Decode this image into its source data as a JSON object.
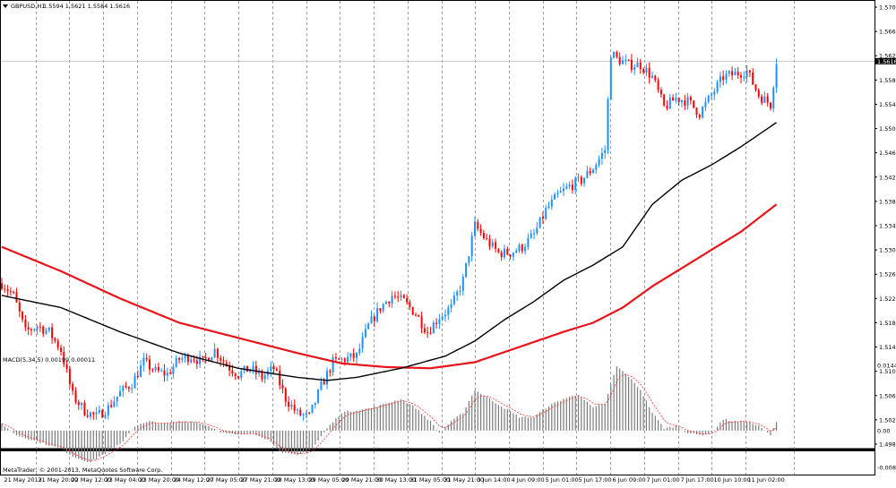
{
  "header": {
    "symbol_label": "GBPUSD,H1",
    "ohlc_label": "1.5594 1.5621 1.5584 1.5616",
    "current_price_label": "1.5616"
  },
  "macd_panel": {
    "title": "MACD(5,34,5) 0.00199 0.00011",
    "copyright": "MetaTrader, © 2001-2013, MetaQuotes Software Corp."
  },
  "colors": {
    "bull_candle": "#1e90ff",
    "bear_candle": "#ff0000",
    "ma_slow": "#e8141a",
    "ma_fast": "#000000",
    "macd_hist": "#7a7a7a",
    "signal_line": "#ff3030",
    "grid": "#9a9a9a",
    "frame": "#000000"
  },
  "chart_data": [
    {
      "type": "candlestick",
      "name": "price",
      "y_ticks": [
        "1.5705",
        "1.5665",
        "1.5625",
        "1.5585",
        "1.5545",
        "1.5505",
        "1.5465",
        "1.5425",
        "1.5385",
        "1.5345",
        "1.5305",
        "1.5265",
        "1.5225",
        "1.5185",
        "1.5145",
        "1.5105",
        "1.5065",
        "1.5025",
        "1.4985"
      ],
      "ylim": [
        1.4985,
        1.5705
      ],
      "x_ticks": [
        "21 May 2013",
        "21 May 20:00",
        "22 May 12:00",
        "23 May 04:00",
        "23 May 20:00",
        "24 May 12:00",
        "27 May 05:00",
        "27 May 21:00",
        "28 May 13:00",
        "29 May 05:00",
        "29 May 21:00",
        "30 May 13:00",
        "31 May 05:00",
        "31 May 21:00",
        "3 Jun 14:00",
        "4 Jun 09:00",
        "5 Jun 01:00",
        "5 Jun 17:00",
        "6 Jun 09:00",
        "7 Jun 01:00",
        "7 Jun 17:00",
        "10 Jun 10:00",
        "11 Jun 02:00"
      ],
      "price_path": [
        [
          0,
          1.525
        ],
        [
          4,
          1.523
        ],
        [
          8,
          1.517
        ],
        [
          12,
          1.518
        ],
        [
          16,
          1.517
        ],
        [
          20,
          1.514
        ],
        [
          24,
          1.5065
        ],
        [
          28,
          1.504
        ],
        [
          32,
          1.503
        ],
        [
          36,
          1.5045
        ],
        [
          40,
          1.507
        ],
        [
          44,
          1.5085
        ],
        [
          48,
          1.512
        ],
        [
          52,
          1.5105
        ],
        [
          56,
          1.51
        ],
        [
          60,
          1.5125
        ],
        [
          64,
          1.513
        ],
        [
          68,
          1.512
        ],
        [
          72,
          1.514
        ],
        [
          76,
          1.5115
        ],
        [
          80,
          1.51
        ],
        [
          84,
          1.511
        ],
        [
          88,
          1.5095
        ],
        [
          92,
          1.511
        ],
        [
          96,
          1.506
        ],
        [
          100,
          1.5035
        ],
        [
          104,
          1.503
        ],
        [
          108,
          1.508
        ],
        [
          112,
          1.512
        ],
        [
          116,
          1.5125
        ],
        [
          120,
          1.513
        ],
        [
          124,
          1.518
        ],
        [
          128,
          1.521
        ],
        [
          132,
          1.523
        ],
        [
          136,
          1.522
        ],
        [
          140,
          1.52
        ],
        [
          144,
          1.517
        ],
        [
          148,
          1.5195
        ],
        [
          152,
          1.521
        ],
        [
          156,
          1.5255
        ],
        [
          160,
          1.5345
        ],
        [
          164,
          1.532
        ],
        [
          168,
          1.53
        ],
        [
          172,
          1.53
        ],
        [
          176,
          1.531
        ],
        [
          180,
          1.533
        ],
        [
          184,
          1.537
        ],
        [
          188,
          1.5395
        ],
        [
          192,
          1.541
        ],
        [
          196,
          1.542
        ],
        [
          200,
          1.544
        ],
        [
          204,
          1.547
        ],
        [
          206,
          1.563
        ],
        [
          208,
          1.562
        ],
        [
          212,
          1.561
        ],
        [
          216,
          1.561
        ],
        [
          220,
          1.559
        ],
        [
          224,
          1.554
        ],
        [
          228,
          1.5555
        ],
        [
          232,
          1.555
        ],
        [
          236,
          1.553
        ],
        [
          240,
          1.556
        ],
        [
          244,
          1.559
        ],
        [
          248,
          1.5595
        ],
        [
          252,
          1.56
        ],
        [
          256,
          1.556
        ],
        [
          260,
          1.5545
        ],
        [
          262,
          1.5616
        ]
      ]
    },
    {
      "type": "line",
      "name": "ma_slow",
      "points": [
        [
          0,
          1.531
        ],
        [
          20,
          1.527
        ],
        [
          40,
          1.5225
        ],
        [
          60,
          1.5185
        ],
        [
          80,
          1.516
        ],
        [
          100,
          1.5135
        ],
        [
          115,
          1.5118
        ],
        [
          130,
          1.5112
        ],
        [
          145,
          1.511
        ],
        [
          160,
          1.512
        ],
        [
          175,
          1.5145
        ],
        [
          190,
          1.517
        ],
        [
          200,
          1.5185
        ],
        [
          210,
          1.521
        ],
        [
          220,
          1.5245
        ],
        [
          230,
          1.5275
        ],
        [
          240,
          1.5305
        ],
        [
          250,
          1.5335
        ],
        [
          262,
          1.538
        ]
      ]
    },
    {
      "type": "line",
      "name": "ma_fast",
      "points": [
        [
          0,
          1.523
        ],
        [
          20,
          1.521
        ],
        [
          40,
          1.517
        ],
        [
          60,
          1.5135
        ],
        [
          80,
          1.511
        ],
        [
          100,
          1.5095
        ],
        [
          110,
          1.509
        ],
        [
          120,
          1.5095
        ],
        [
          135,
          1.511
        ],
        [
          150,
          1.513
        ],
        [
          160,
          1.5155
        ],
        [
          170,
          1.519
        ],
        [
          180,
          1.522
        ],
        [
          190,
          1.5255
        ],
        [
          200,
          1.528
        ],
        [
          210,
          1.531
        ],
        [
          215,
          1.5345
        ],
        [
          220,
          1.538
        ],
        [
          230,
          1.542
        ],
        [
          240,
          1.5445
        ],
        [
          250,
          1.5475
        ],
        [
          262,
          1.5515
        ]
      ]
    },
    {
      "type": "bar",
      "name": "macd",
      "y_ticks": [
        "0.01442",
        "0.00",
        "-0.00813"
      ],
      "ylim": [
        -0.00813,
        0.01442
      ],
      "macd_path": [
        [
          0,
          0.0015
        ],
        [
          5,
          -0.001
        ],
        [
          10,
          -0.002
        ],
        [
          15,
          -0.003
        ],
        [
          20,
          -0.004
        ],
        [
          25,
          -0.006
        ],
        [
          30,
          -0.007
        ],
        [
          35,
          -0.005
        ],
        [
          40,
          -0.003
        ],
        [
          45,
          0.001
        ],
        [
          50,
          0.002
        ],
        [
          55,
          0.0015
        ],
        [
          60,
          0.002
        ],
        [
          65,
          0.002
        ],
        [
          70,
          0.001
        ],
        [
          75,
          -0.0005
        ],
        [
          80,
          -0.001
        ],
        [
          85,
          -0.0005
        ],
        [
          90,
          -0.002
        ],
        [
          95,
          -0.005
        ],
        [
          100,
          -0.0055
        ],
        [
          105,
          -0.004
        ],
        [
          110,
          0.0005
        ],
        [
          115,
          0.004
        ],
        [
          120,
          0.0045
        ],
        [
          125,
          0.005
        ],
        [
          130,
          0.006
        ],
        [
          135,
          0.007
        ],
        [
          140,
          0.005
        ],
        [
          145,
          0.002
        ],
        [
          148,
          -0.0005
        ],
        [
          152,
          0.002
        ],
        [
          156,
          0.004
        ],
        [
          160,
          0.009
        ],
        [
          165,
          0.007
        ],
        [
          170,
          0.005
        ],
        [
          175,
          0.003
        ],
        [
          180,
          0.003
        ],
        [
          185,
          0.0055
        ],
        [
          190,
          0.007
        ],
        [
          195,
          0.008
        ],
        [
          200,
          0.005
        ],
        [
          204,
          0.006
        ],
        [
          208,
          0.0142
        ],
        [
          212,
          0.012
        ],
        [
          216,
          0.009
        ],
        [
          220,
          0.004
        ],
        [
          224,
          0.0005
        ],
        [
          228,
          0.001
        ],
        [
          232,
          -0.0005
        ],
        [
          236,
          -0.001
        ],
        [
          240,
          -0.0005
        ],
        [
          244,
          0.0025
        ],
        [
          248,
          0.002
        ],
        [
          252,
          0.002
        ],
        [
          256,
          0.001
        ],
        [
          260,
          -0.001
        ],
        [
          262,
          0.0018
        ]
      ]
    }
  ]
}
